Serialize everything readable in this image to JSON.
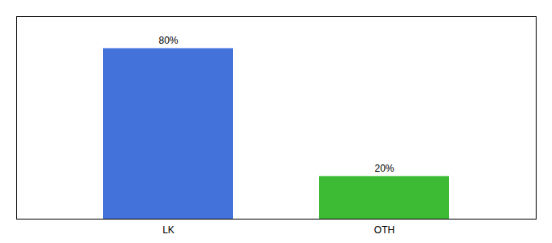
{
  "chart_data": {
    "type": "bar",
    "categories": [
      "LK",
      "OTH"
    ],
    "values": [
      80,
      20
    ],
    "colors": [
      "#4472db",
      "#3dbb35"
    ],
    "value_labels": [
      "80%",
      "20%"
    ],
    "data_labels": true,
    "ylim": [
      0,
      95
    ],
    "tick_labels": "x"
  }
}
